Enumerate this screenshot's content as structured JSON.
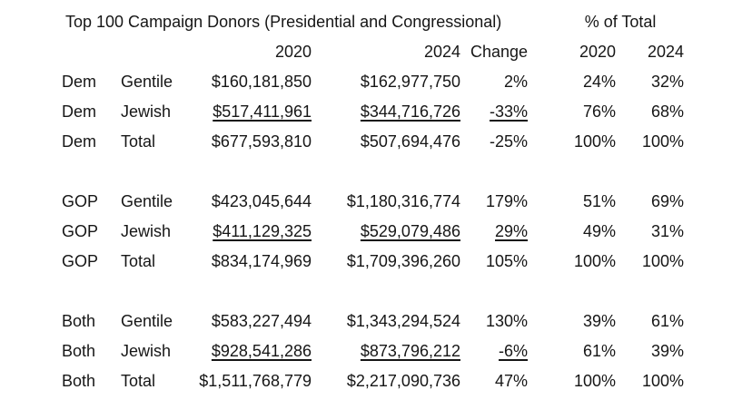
{
  "colors": {
    "background": "#ffffff",
    "text": "#161616"
  },
  "chart_data": {
    "type": "table",
    "title": "Top 100 Campaign Donors (Presidential and Congressional)",
    "pct_of_total_header": "% of Total",
    "column_headers": {
      "amount_2020": "2020",
      "amount_2024": "2024",
      "change": "Change",
      "pct_2020": "2020",
      "pct_2024": "2024"
    },
    "sections": [
      {
        "rows": [
          {
            "group": "Dem",
            "category": "Gentile",
            "amount_2020": "$160,181,850",
            "amount_2024": "$162,977,750",
            "change": "2%",
            "pct_2020": "24%",
            "pct_2024": "32%",
            "underline": false
          },
          {
            "group": "Dem",
            "category": "Jewish",
            "amount_2020": "$517,411,961",
            "amount_2024": "$344,716,726",
            "change": "-33%",
            "pct_2020": "76%",
            "pct_2024": "68%",
            "underline": true
          },
          {
            "group": "Dem",
            "category": "Total",
            "amount_2020": "$677,593,810",
            "amount_2024": "$507,694,476",
            "change": "-25%",
            "pct_2020": "100%",
            "pct_2024": "100%",
            "underline": false
          }
        ]
      },
      {
        "rows": [
          {
            "group": "GOP",
            "category": "Gentile",
            "amount_2020": "$423,045,644",
            "amount_2024": "$1,180,316,774",
            "change": "179%",
            "pct_2020": "51%",
            "pct_2024": "69%",
            "underline": false
          },
          {
            "group": "GOP",
            "category": "Jewish",
            "amount_2020": "$411,129,325",
            "amount_2024": "$529,079,486",
            "change": "29%",
            "pct_2020": "49%",
            "pct_2024": "31%",
            "underline": true
          },
          {
            "group": "GOP",
            "category": "Total",
            "amount_2020": "$834,174,969",
            "amount_2024": "$1,709,396,260",
            "change": "105%",
            "pct_2020": "100%",
            "pct_2024": "100%",
            "underline": false
          }
        ]
      },
      {
        "rows": [
          {
            "group": "Both",
            "category": "Gentile",
            "amount_2020": "$583,227,494",
            "amount_2024": "$1,343,294,524",
            "change": "130%",
            "pct_2020": "39%",
            "pct_2024": "61%",
            "underline": false
          },
          {
            "group": "Both",
            "category": "Jewish",
            "amount_2020": "$928,541,286",
            "amount_2024": "$873,796,212",
            "change": "-6%",
            "pct_2020": "61%",
            "pct_2024": "39%",
            "underline": true
          },
          {
            "group": "Both",
            "category": "Total",
            "amount_2020": "$1,511,768,779",
            "amount_2024": "$2,217,090,736",
            "change": "47%",
            "pct_2020": "100%",
            "pct_2024": "100%",
            "underline": false
          }
        ]
      }
    ]
  }
}
